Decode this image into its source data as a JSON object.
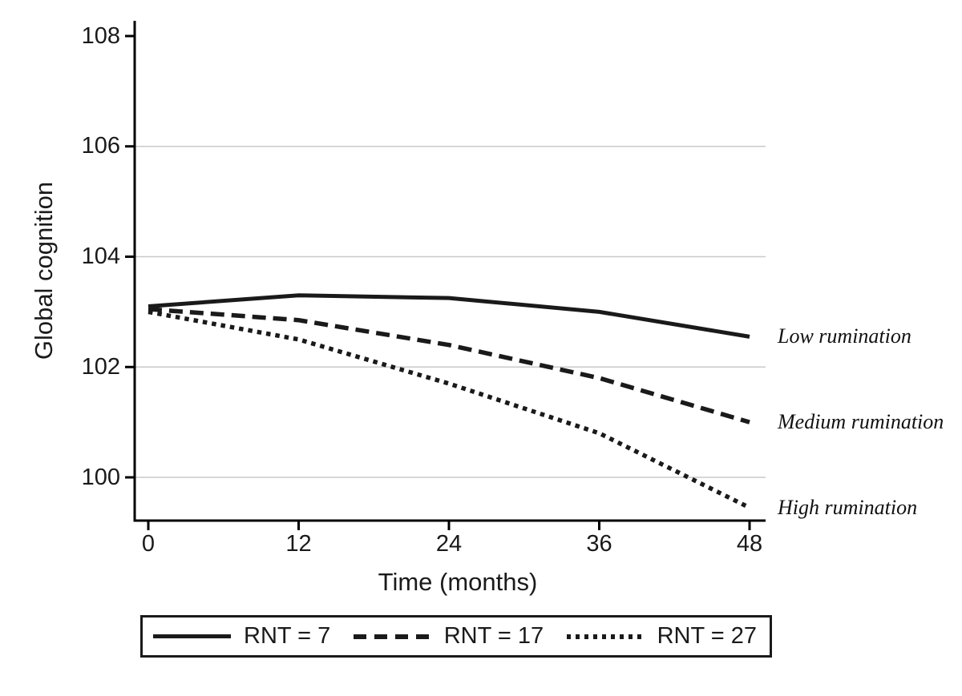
{
  "chart_data": {
    "type": "line",
    "title": "",
    "xlabel": "Time (months)",
    "ylabel": "Global cognition",
    "x": [
      0,
      12,
      24,
      36,
      48
    ],
    "xticks": [
      "0",
      "12",
      "24",
      "36",
      "48"
    ],
    "yticks": [
      "108",
      "106",
      "104",
      "102",
      "100"
    ],
    "ytick_values": [
      108,
      106,
      104,
      102,
      100
    ],
    "xlim": [
      0,
      48
    ],
    "ylim": [
      99.2,
      108.3
    ],
    "grid": "horizontal gridlines at 100, 102, 104, 106",
    "legend_position": "bottom",
    "series": [
      {
        "name": "RNT = 7",
        "annotation": "Low rumination",
        "style": "solid",
        "values": [
          103.1,
          103.3,
          103.25,
          103.0,
          102.55
        ]
      },
      {
        "name": "RNT = 17",
        "annotation": "Medium rumination",
        "style": "dashed",
        "values": [
          103.05,
          102.85,
          102.4,
          101.8,
          101.0
        ]
      },
      {
        "name": "RNT = 27",
        "annotation": "High rumination",
        "style": "dotted",
        "values": [
          103.0,
          102.5,
          101.7,
          100.8,
          99.45
        ]
      }
    ],
    "colors": {
      "line": "#1a1a1a",
      "axis": "#000000",
      "grid": "#c9c9c9",
      "background": "#ffffff"
    }
  }
}
